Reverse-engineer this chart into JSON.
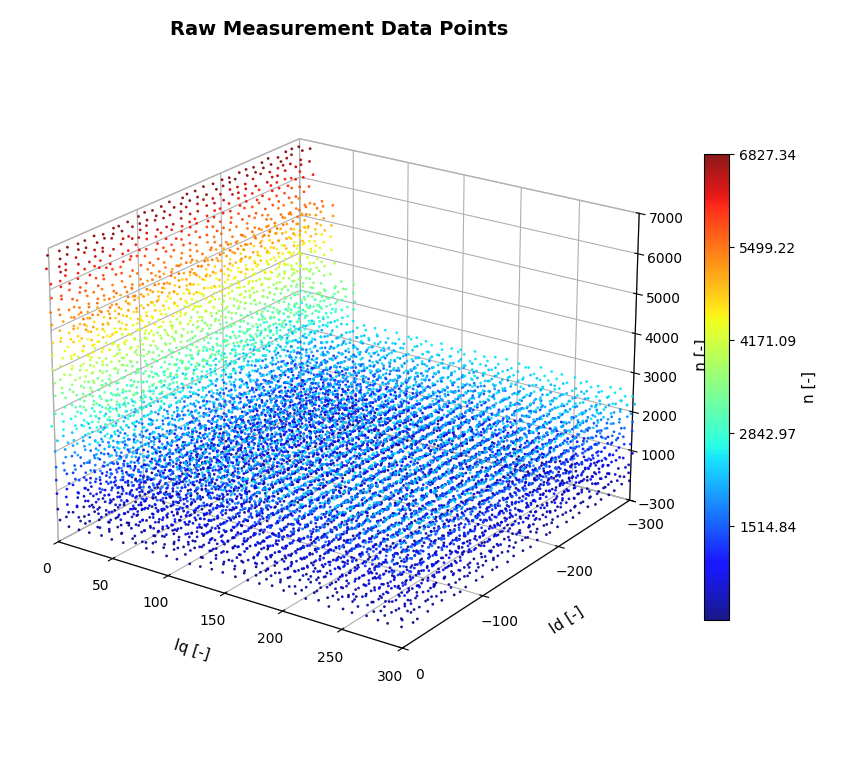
{
  "title": "Raw Measurement Data Points",
  "xlabel": "Iq [-]",
  "ylabel": "Id [-]",
  "zlabel": "n [-]",
  "colorbar_label": "n [-]",
  "colorbar_ticks": [
    1514.84,
    2842.97,
    4171.09,
    5499.22,
    6827.34
  ],
  "colorbar_min": 183.46,
  "colorbar_max": 6827.34,
  "iq_range": [
    0,
    300
  ],
  "id_range": [
    -300,
    0
  ],
  "n_range": [
    -300,
    7000
  ],
  "iq_ticks": [
    0,
    50,
    100,
    150,
    200,
    250,
    300
  ],
  "id_ticks": [
    -300,
    -200,
    -100,
    0
  ],
  "n_ticks": [
    -300,
    1000,
    2000,
    3000,
    4000,
    5000,
    6000,
    7000
  ],
  "marker_size": 4,
  "cmap": "jet",
  "background_color": "#ffffff",
  "title_fontsize": 14,
  "label_fontsize": 11
}
